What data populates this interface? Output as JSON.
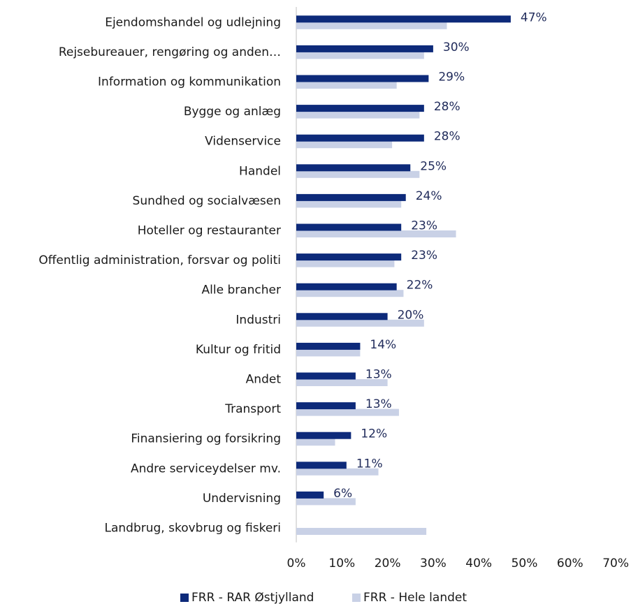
{
  "chart_data": {
    "type": "bar",
    "orientation": "horizontal",
    "categories": [
      "Ejendomshandel og udlejning",
      "Rejsebureauer, rengøring og anden…",
      "Information og kommunikation",
      "Bygge og anlæg",
      "Videnservice",
      "Handel",
      "Sundhed og socialvæsen",
      "Hoteller og restauranter",
      "Offentlig administration, forsvar og politi",
      "Alle brancher",
      "Industri",
      "Kultur og fritid",
      "Andet",
      "Transport",
      "Finansiering og forsikring",
      "Andre serviceydelser mv.",
      "Undervisning",
      "Landbrug, skovbrug og fiskeri"
    ],
    "series": [
      {
        "name": "FRR - RAR Østjylland",
        "color": "#0d2a7a",
        "values": [
          47,
          30,
          29,
          28,
          28,
          25,
          24,
          23,
          23,
          22,
          20,
          14,
          13,
          13,
          12,
          11,
          6,
          null
        ],
        "labels": [
          "47%",
          "30%",
          "29%",
          "28%",
          "28%",
          "25%",
          "24%",
          "23%",
          "23%",
          "22%",
          "20%",
          "14%",
          "13%",
          "13%",
          "12%",
          "11%",
          "6%",
          ""
        ]
      },
      {
        "name": "FRR - Hele landet",
        "color": "#c9d1e6",
        "values": [
          33,
          28,
          22,
          27,
          21,
          27,
          23,
          35,
          21.5,
          23.5,
          28,
          14,
          20,
          22.5,
          8.5,
          18,
          13,
          28.5
        ]
      }
    ],
    "xlim": [
      0,
      70
    ],
    "xticks": [
      "0%",
      "10%",
      "20%",
      "30%",
      "40%",
      "50%",
      "60%",
      "70%"
    ],
    "legend_position": "bottom"
  }
}
